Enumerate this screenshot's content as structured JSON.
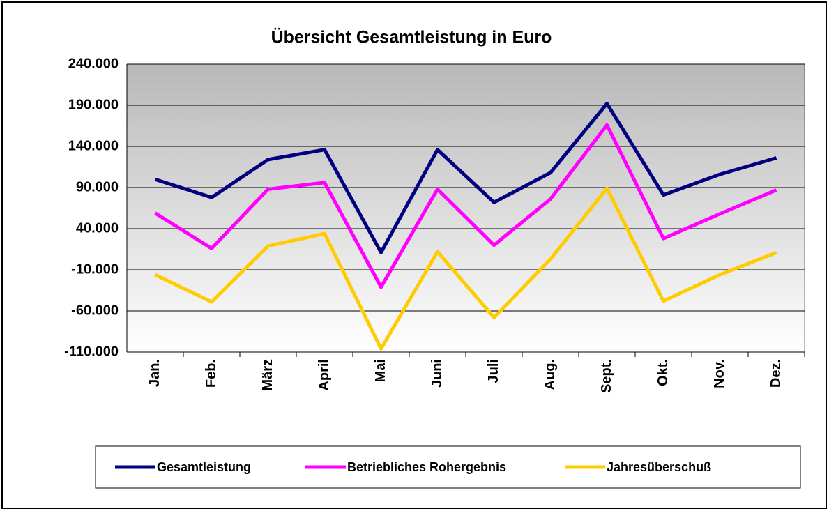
{
  "chart_data": {
    "type": "line",
    "title": "Übersicht Gesamtleistung in Euro",
    "categories": [
      "Jan.",
      "Feb.",
      "März",
      "April",
      "Mai",
      "Juni",
      "Juli",
      "Aug.",
      "Sept.",
      "Okt.",
      "Nov.",
      "Dez."
    ],
    "series": [
      {
        "name": "Gesamtleistung",
        "color": "#000080",
        "values": [
          100000,
          78000,
          124000,
          136000,
          11000,
          136000,
          72000,
          108000,
          192000,
          81000,
          106000,
          126000
        ]
      },
      {
        "name": "Betriebliches Rohergebnis",
        "color": "#ff00ff",
        "values": [
          59000,
          16000,
          88000,
          96000,
          -31000,
          88000,
          20000,
          76000,
          166000,
          28000,
          58000,
          87000
        ]
      },
      {
        "name": "Jahresüberschuß",
        "color": "#ffcc00",
        "values": [
          -16000,
          -49000,
          19000,
          34000,
          -106000,
          12000,
          -68000,
          3000,
          89000,
          -48000,
          -16000,
          11000
        ]
      }
    ],
    "ylim": [
      -110000,
      240000
    ],
    "yticks": [
      {
        "value": -110000,
        "label": "-110.000"
      },
      {
        "value": -60000,
        "label": "-60.000"
      },
      {
        "value": -10000,
        "label": "-10.000"
      },
      {
        "value": 40000,
        "label": "40.000"
      },
      {
        "value": 90000,
        "label": "90.000"
      },
      {
        "value": 140000,
        "label": "140.000"
      },
      {
        "value": 190000,
        "label": "190.000"
      },
      {
        "value": 240000,
        "label": "240.000"
      }
    ],
    "grid": true,
    "legend": "bottom"
  }
}
